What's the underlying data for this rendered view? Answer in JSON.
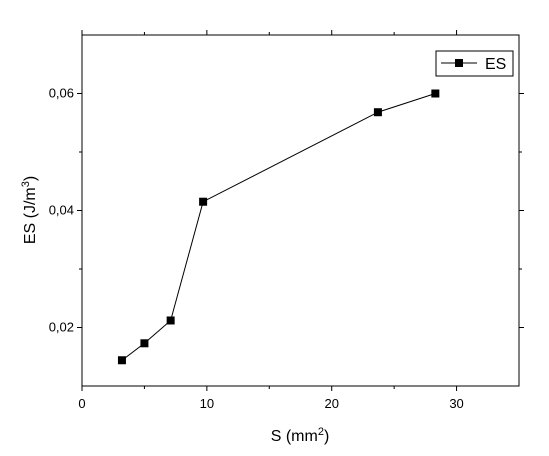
{
  "chart_data": {
    "type": "line",
    "xlabel": "S (mm",
    "xlabel_sup": "2",
    "xlabel_end": ")",
    "ylabel": "ES (J/m",
    "ylabel_sup": "3",
    "ylabel_end": ")",
    "xlim": [
      0,
      35
    ],
    "ylim": [
      0.01,
      0.07
    ],
    "x_ticks": [
      0,
      10,
      20,
      30
    ],
    "x_tick_labels": [
      "0",
      "10",
      "20",
      "30"
    ],
    "y_ticks": [
      0.02,
      0.04,
      0.06
    ],
    "y_tick_labels": [
      "0,02",
      "0,04",
      "0,06"
    ],
    "grid": false,
    "legend_position": "top-right",
    "series": [
      {
        "name": "ES",
        "color": "#000000",
        "marker": "square",
        "x": [
          3.2,
          5.0,
          7.1,
          9.7,
          23.7,
          28.3
        ],
        "y": [
          0.0144,
          0.0173,
          0.0212,
          0.0415,
          0.0568,
          0.06
        ]
      }
    ]
  }
}
